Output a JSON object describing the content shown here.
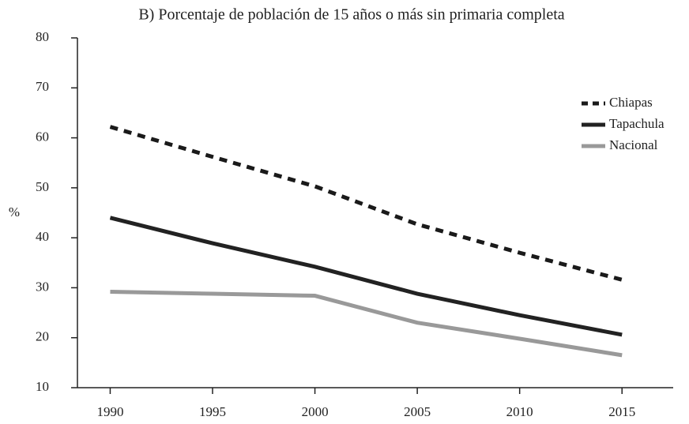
{
  "chart_data": {
    "type": "line",
    "title": "B) Porcentaje de población de 15 años o más sin primaria completa",
    "y_label": "%",
    "x": [
      1990,
      1995,
      2000,
      2005,
      2010,
      2015
    ],
    "xlim": [
      1988.4,
      2017.5
    ],
    "xticks": [
      1990,
      1995,
      2000,
      2005,
      2010,
      2015
    ],
    "ylim": [
      10,
      80
    ],
    "yticks": [
      10,
      20,
      30,
      40,
      50,
      60,
      70,
      80
    ],
    "grid": false,
    "legend": "upper right",
    "series": [
      {
        "name": "Chiapas",
        "color": "#1a1a1a",
        "dashed": true,
        "values": [
          62.2,
          56.2,
          50.3,
          42.7,
          37.0,
          31.6
        ]
      },
      {
        "name": "Tapachula",
        "color": "#222222",
        "dashed": false,
        "values": [
          44.0,
          38.9,
          34.2,
          28.8,
          24.5,
          20.6
        ]
      },
      {
        "name": "Nacional",
        "color": "#999999",
        "dashed": false,
        "values": [
          29.2,
          28.8,
          28.4,
          23.0,
          19.8,
          16.5
        ]
      }
    ]
  }
}
